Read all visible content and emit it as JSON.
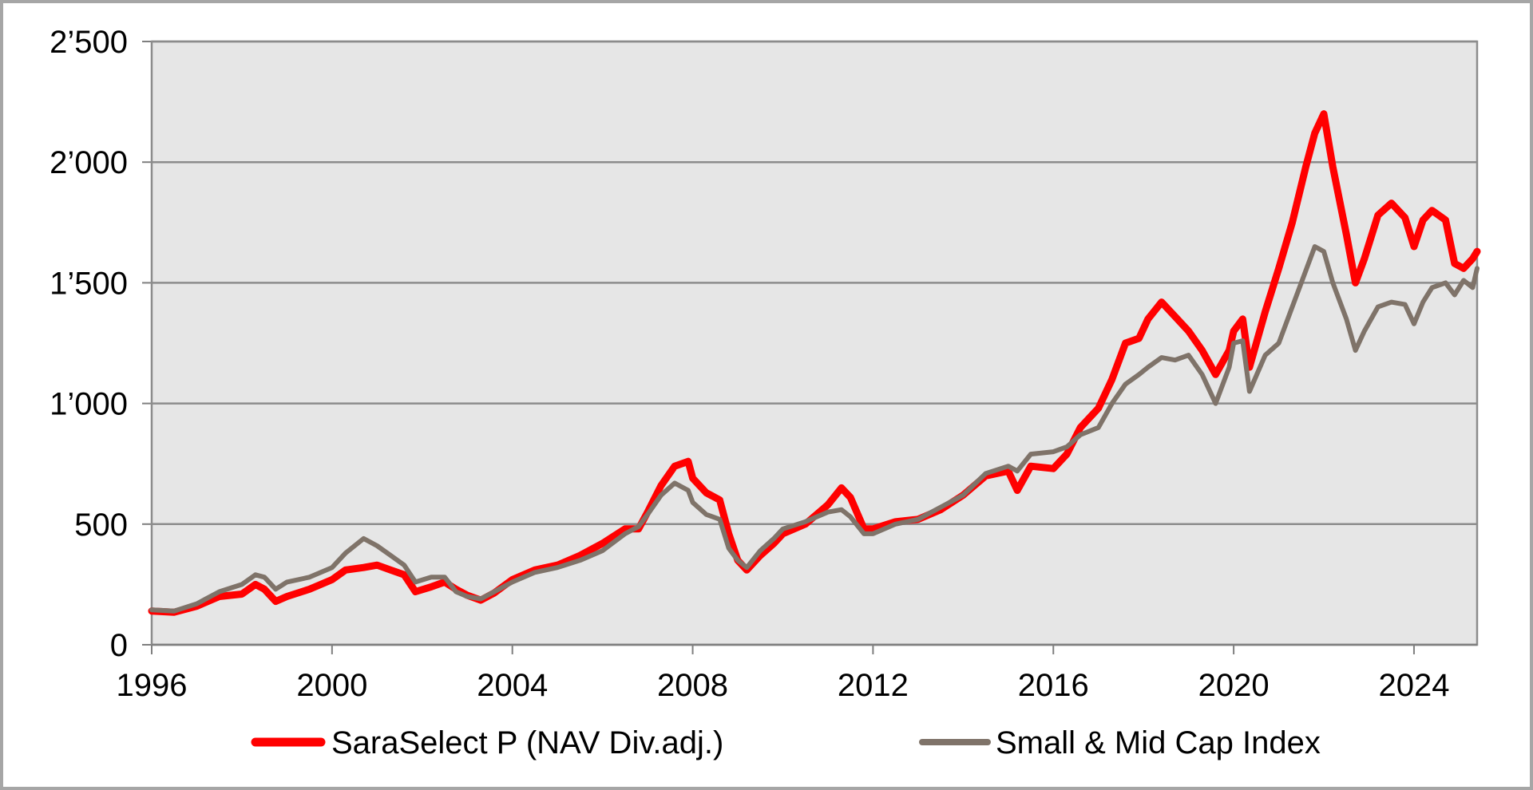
{
  "chart_data": {
    "type": "line",
    "title": "",
    "xlabel": "",
    "ylabel": "",
    "xlim": [
      1996,
      2025.4
    ],
    "ylim": [
      0,
      2500
    ],
    "x_ticks": [
      {
        "value": 1996,
        "label": "1996"
      },
      {
        "value": 2000,
        "label": "2000"
      },
      {
        "value": 2004,
        "label": "2004"
      },
      {
        "value": 2008,
        "label": "2008"
      },
      {
        "value": 2012,
        "label": "2012"
      },
      {
        "value": 2016,
        "label": "2016"
      },
      {
        "value": 2020,
        "label": "2020"
      },
      {
        "value": 2024,
        "label": "2024"
      }
    ],
    "y_ticks": [
      {
        "value": 0,
        "label": "0"
      },
      {
        "value": 500,
        "label": "500"
      },
      {
        "value": 1000,
        "label": "1’000"
      },
      {
        "value": 1500,
        "label": "1’500"
      },
      {
        "value": 2000,
        "label": "2’000"
      },
      {
        "value": 2500,
        "label": "2’500"
      }
    ],
    "grid": "horizontal",
    "legend_position": "bottom",
    "plot_background": "#e6e6e6",
    "series": [
      {
        "name": "SaraSelect P (NAV Div.adj.)",
        "color": "#ff0000",
        "points": [
          [
            1996.0,
            140
          ],
          [
            1996.5,
            135
          ],
          [
            1997.0,
            160
          ],
          [
            1997.5,
            200
          ],
          [
            1998.0,
            210
          ],
          [
            1998.3,
            250
          ],
          [
            1998.5,
            230
          ],
          [
            1998.75,
            180
          ],
          [
            1999.0,
            200
          ],
          [
            1999.5,
            230
          ],
          [
            2000.0,
            270
          ],
          [
            2000.3,
            310
          ],
          [
            2000.7,
            320
          ],
          [
            2001.0,
            330
          ],
          [
            2001.3,
            310
          ],
          [
            2001.6,
            290
          ],
          [
            2001.85,
            220
          ],
          [
            2002.2,
            240
          ],
          [
            2002.5,
            260
          ],
          [
            2002.75,
            230
          ],
          [
            2003.0,
            205
          ],
          [
            2003.3,
            185
          ],
          [
            2003.6,
            215
          ],
          [
            2004.0,
            270
          ],
          [
            2004.5,
            310
          ],
          [
            2005.0,
            330
          ],
          [
            2005.5,
            370
          ],
          [
            2006.0,
            420
          ],
          [
            2006.5,
            480
          ],
          [
            2006.8,
            480
          ],
          [
            2007.0,
            550
          ],
          [
            2007.3,
            660
          ],
          [
            2007.6,
            740
          ],
          [
            2007.9,
            760
          ],
          [
            2008.0,
            690
          ],
          [
            2008.3,
            630
          ],
          [
            2008.6,
            600
          ],
          [
            2008.8,
            460
          ],
          [
            2009.0,
            350
          ],
          [
            2009.2,
            310
          ],
          [
            2009.5,
            370
          ],
          [
            2009.8,
            420
          ],
          [
            2010.0,
            460
          ],
          [
            2010.5,
            500
          ],
          [
            2011.0,
            580
          ],
          [
            2011.3,
            650
          ],
          [
            2011.5,
            610
          ],
          [
            2011.8,
            480
          ],
          [
            2012.0,
            480
          ],
          [
            2012.5,
            510
          ],
          [
            2013.0,
            520
          ],
          [
            2013.5,
            560
          ],
          [
            2014.0,
            620
          ],
          [
            2014.5,
            700
          ],
          [
            2015.0,
            720
          ],
          [
            2015.2,
            640
          ],
          [
            2015.5,
            740
          ],
          [
            2016.0,
            730
          ],
          [
            2016.3,
            790
          ],
          [
            2016.6,
            900
          ],
          [
            2017.0,
            980
          ],
          [
            2017.3,
            1100
          ],
          [
            2017.6,
            1250
          ],
          [
            2017.9,
            1270
          ],
          [
            2018.1,
            1350
          ],
          [
            2018.4,
            1420
          ],
          [
            2018.7,
            1360
          ],
          [
            2019.0,
            1300
          ],
          [
            2019.3,
            1220
          ],
          [
            2019.6,
            1120
          ],
          [
            2019.9,
            1220
          ],
          [
            2020.0,
            1300
          ],
          [
            2020.2,
            1350
          ],
          [
            2020.35,
            1150
          ],
          [
            2020.7,
            1380
          ],
          [
            2021.0,
            1560
          ],
          [
            2021.3,
            1750
          ],
          [
            2021.6,
            1980
          ],
          [
            2021.8,
            2120
          ],
          [
            2022.0,
            2200
          ],
          [
            2022.2,
            1980
          ],
          [
            2022.5,
            1700
          ],
          [
            2022.7,
            1500
          ],
          [
            2022.9,
            1600
          ],
          [
            2023.2,
            1780
          ],
          [
            2023.5,
            1830
          ],
          [
            2023.8,
            1770
          ],
          [
            2024.0,
            1650
          ],
          [
            2024.2,
            1760
          ],
          [
            2024.4,
            1800
          ],
          [
            2024.7,
            1760
          ],
          [
            2024.9,
            1580
          ],
          [
            2025.1,
            1560
          ],
          [
            2025.3,
            1600
          ],
          [
            2025.4,
            1630
          ]
        ]
      },
      {
        "name": "Small & Mid Cap Index",
        "color": "#7f7369",
        "points": [
          [
            1996.0,
            145
          ],
          [
            1996.5,
            140
          ],
          [
            1997.0,
            170
          ],
          [
            1997.5,
            220
          ],
          [
            1998.0,
            250
          ],
          [
            1998.3,
            290
          ],
          [
            1998.5,
            280
          ],
          [
            1998.75,
            230
          ],
          [
            1999.0,
            260
          ],
          [
            1999.5,
            280
          ],
          [
            2000.0,
            320
          ],
          [
            2000.3,
            380
          ],
          [
            2000.7,
            440
          ],
          [
            2001.0,
            410
          ],
          [
            2001.3,
            370
          ],
          [
            2001.6,
            330
          ],
          [
            2001.85,
            260
          ],
          [
            2002.2,
            280
          ],
          [
            2002.5,
            280
          ],
          [
            2002.75,
            220
          ],
          [
            2003.0,
            200
          ],
          [
            2003.3,
            190
          ],
          [
            2003.6,
            220
          ],
          [
            2004.0,
            260
          ],
          [
            2004.5,
            300
          ],
          [
            2005.0,
            320
          ],
          [
            2005.5,
            350
          ],
          [
            2006.0,
            390
          ],
          [
            2006.5,
            460
          ],
          [
            2006.8,
            490
          ],
          [
            2007.0,
            540
          ],
          [
            2007.3,
            620
          ],
          [
            2007.6,
            670
          ],
          [
            2007.9,
            640
          ],
          [
            2008.0,
            590
          ],
          [
            2008.3,
            540
          ],
          [
            2008.6,
            520
          ],
          [
            2008.8,
            400
          ],
          [
            2009.0,
            350
          ],
          [
            2009.2,
            320
          ],
          [
            2009.5,
            390
          ],
          [
            2009.8,
            440
          ],
          [
            2010.0,
            480
          ],
          [
            2010.5,
            510
          ],
          [
            2011.0,
            550
          ],
          [
            2011.3,
            560
          ],
          [
            2011.5,
            530
          ],
          [
            2011.8,
            460
          ],
          [
            2012.0,
            460
          ],
          [
            2012.5,
            500
          ],
          [
            2013.0,
            520
          ],
          [
            2013.5,
            570
          ],
          [
            2014.0,
            620
          ],
          [
            2014.5,
            710
          ],
          [
            2015.0,
            740
          ],
          [
            2015.2,
            720
          ],
          [
            2015.5,
            790
          ],
          [
            2016.0,
            800
          ],
          [
            2016.3,
            820
          ],
          [
            2016.6,
            870
          ],
          [
            2017.0,
            900
          ],
          [
            2017.3,
            1000
          ],
          [
            2017.6,
            1080
          ],
          [
            2017.9,
            1120
          ],
          [
            2018.1,
            1150
          ],
          [
            2018.4,
            1190
          ],
          [
            2018.7,
            1180
          ],
          [
            2019.0,
            1200
          ],
          [
            2019.3,
            1120
          ],
          [
            2019.6,
            1000
          ],
          [
            2019.9,
            1150
          ],
          [
            2020.0,
            1250
          ],
          [
            2020.2,
            1260
          ],
          [
            2020.35,
            1050
          ],
          [
            2020.7,
            1200
          ],
          [
            2021.0,
            1250
          ],
          [
            2021.3,
            1400
          ],
          [
            2021.6,
            1550
          ],
          [
            2021.8,
            1650
          ],
          [
            2022.0,
            1630
          ],
          [
            2022.2,
            1500
          ],
          [
            2022.5,
            1350
          ],
          [
            2022.7,
            1220
          ],
          [
            2022.9,
            1300
          ],
          [
            2023.2,
            1400
          ],
          [
            2023.5,
            1420
          ],
          [
            2023.8,
            1410
          ],
          [
            2024.0,
            1330
          ],
          [
            2024.2,
            1420
          ],
          [
            2024.4,
            1480
          ],
          [
            2024.7,
            1500
          ],
          [
            2024.9,
            1450
          ],
          [
            2025.1,
            1510
          ],
          [
            2025.3,
            1480
          ],
          [
            2025.4,
            1560
          ]
        ]
      }
    ]
  }
}
